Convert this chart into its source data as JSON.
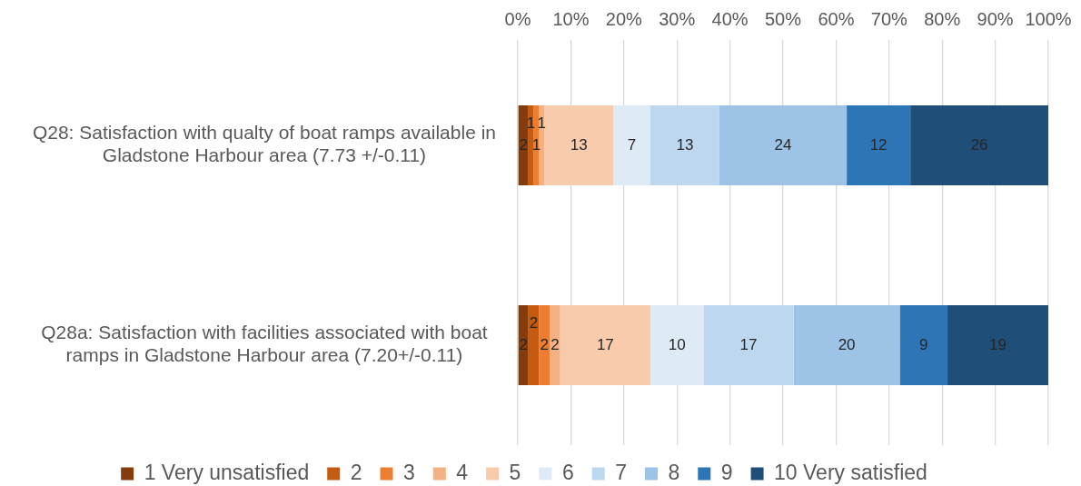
{
  "chart_data": {
    "type": "bar",
    "orientation": "horizontal",
    "stacked": true,
    "categories": [
      "Q28: Satisfaction with qualty of boat ramps available in Gladstone Harbour area (7.73 +/-0.11)",
      "Q28a: Satisfaction with facilities associated with boat ramps in Gladstone Harbour area (7.20+/-0.11)"
    ],
    "series": [
      {
        "name": "1 Very unsatisfied",
        "color": "#843c0c",
        "values": [
          2,
          2
        ]
      },
      {
        "name": "2",
        "color": "#c55a11",
        "values": [
          1,
          2
        ]
      },
      {
        "name": "3",
        "color": "#ed7d31",
        "values": [
          1,
          2
        ]
      },
      {
        "name": "4",
        "color": "#f4b183",
        "values": [
          1,
          2
        ]
      },
      {
        "name": "5",
        "color": "#f8cbad",
        "values": [
          13,
          17
        ]
      },
      {
        "name": "6",
        "color": "#deebf7",
        "values": [
          7,
          10
        ]
      },
      {
        "name": "7",
        "color": "#bdd7ee",
        "values": [
          13,
          17
        ]
      },
      {
        "name": "8",
        "color": "#9dc3e6",
        "values": [
          24,
          20
        ]
      },
      {
        "name": "9",
        "color": "#2e75b6",
        "values": [
          12,
          9
        ]
      },
      {
        "name": "10 Very satisfied",
        "color": "#1f4e79",
        "values": [
          26,
          19
        ]
      }
    ],
    "xlim": [
      0,
      100
    ],
    "xticks": [
      {
        "value": 0,
        "label": "0%"
      },
      {
        "value": 10,
        "label": "10%"
      },
      {
        "value": 20,
        "label": "20%"
      },
      {
        "value": 30,
        "label": "30%"
      },
      {
        "value": 40,
        "label": "40%"
      },
      {
        "value": 50,
        "label": "50%"
      },
      {
        "value": 60,
        "label": "60%"
      },
      {
        "value": 70,
        "label": "70%"
      },
      {
        "value": 80,
        "label": "80%"
      },
      {
        "value": 90,
        "label": "90%"
      },
      {
        "value": 100,
        "label": "100%"
      }
    ],
    "grid": "x",
    "legend": "bottom",
    "data_labels": true
  }
}
